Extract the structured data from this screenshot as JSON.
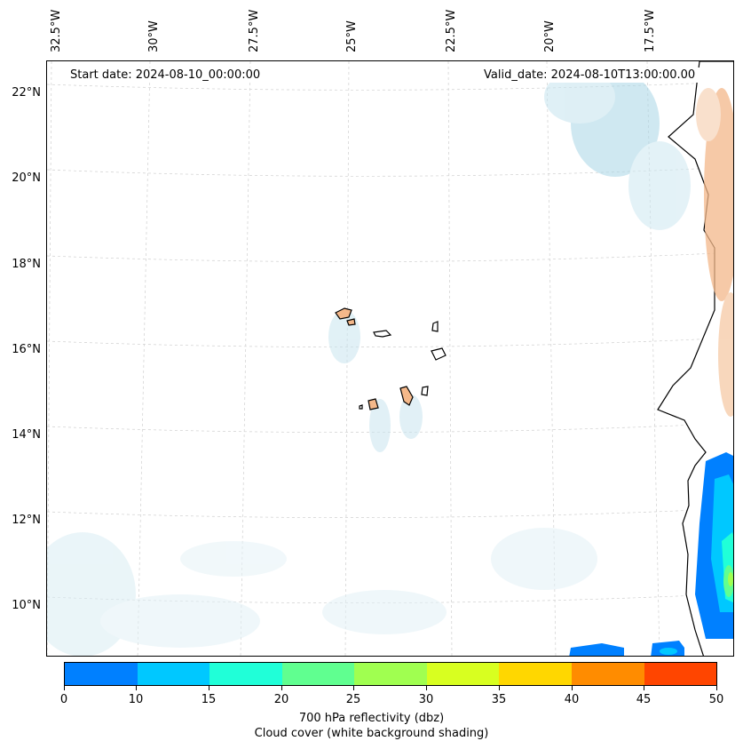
{
  "map": {
    "start_date": "Start date: 2024-08-10_00:00:00",
    "valid_date": "Valid_date: 2024-08-10T13:00:00.00",
    "lon_labels": [
      "32.5°W",
      "30°W",
      "27.5°W",
      "25°W",
      "22.5°W",
      "20°W",
      "17.5°W"
    ],
    "lat_labels": [
      "22°N",
      "20°N",
      "18°N",
      "16°N",
      "14°N",
      "12°N",
      "10°N"
    ]
  },
  "colorbar": {
    "ticks": [
      "0",
      "10",
      "15",
      "20",
      "25",
      "30",
      "35",
      "40",
      "45",
      "50"
    ],
    "colors": [
      "#0080ff",
      "#00c8ff",
      "#20ffd8",
      "#60ff90",
      "#a0ff50",
      "#d8ff20",
      "#ffd700",
      "#ff8c00",
      "#ff4500"
    ],
    "label": "700 hPa reflectivity (dbz)",
    "sublabel": "Cloud cover (white background shading)"
  }
}
